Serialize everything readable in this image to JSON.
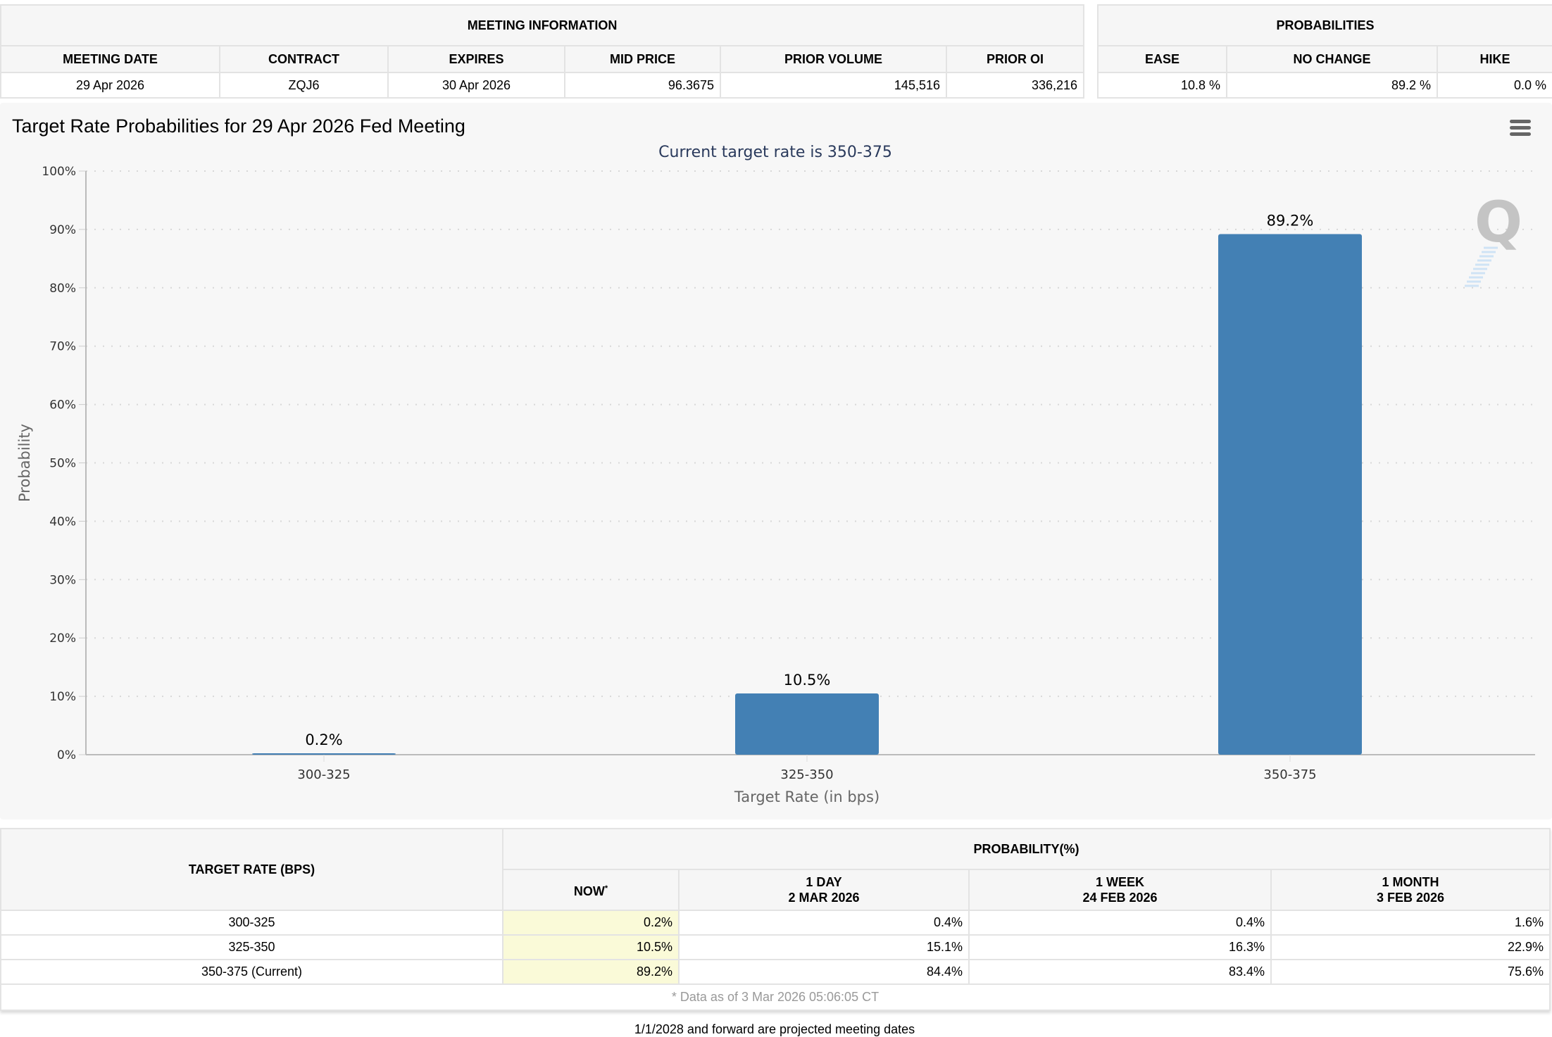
{
  "meeting_info": {
    "title": "MEETING INFORMATION",
    "headers": [
      "MEETING DATE",
      "CONTRACT",
      "EXPIRES",
      "MID PRICE",
      "PRIOR VOLUME",
      "PRIOR OI"
    ],
    "row": [
      "29 Apr 2026",
      "ZQJ6",
      "30 Apr 2026",
      "96.3675",
      "145,516",
      "336,216"
    ]
  },
  "probabilities": {
    "title": "PROBABILITIES",
    "headers": [
      "EASE",
      "NO CHANGE",
      "HIKE"
    ],
    "row": [
      "10.8 %",
      "89.2 %",
      "0.0 %"
    ]
  },
  "chart": {
    "menu_icon": "hamburger-menu-icon",
    "watermark_icon": "q-logo-icon"
  },
  "chart_data": {
    "type": "bar",
    "title": "Target Rate Probabilities for 29 Apr 2026 Fed Meeting",
    "subtitle": "Current target rate is 350-375",
    "xlabel": "Target Rate (in bps)",
    "ylabel": "Probability",
    "categories": [
      "300-325",
      "325-350",
      "350-375"
    ],
    "values": [
      0.2,
      10.5,
      89.2
    ],
    "data_labels": [
      "0.2%",
      "10.5%",
      "89.2%"
    ],
    "ylim": [
      0,
      100
    ],
    "yticks": [
      0,
      10,
      20,
      30,
      40,
      50,
      60,
      70,
      80,
      90,
      100
    ],
    "ytick_labels": [
      "0%",
      "10%",
      "20%",
      "30%",
      "40%",
      "50%",
      "60%",
      "70%",
      "80%",
      "90%",
      "100%"
    ],
    "grid": true,
    "bar_color": "#4380b4"
  },
  "prob_table": {
    "target_header": "TARGET RATE (BPS)",
    "group_header": "PROBABILITY(%)",
    "columns": [
      {
        "line1": "NOW",
        "line2": "",
        "sup": "*"
      },
      {
        "line1": "1 DAY",
        "line2": "2 MAR 2026",
        "sup": ""
      },
      {
        "line1": "1 WEEK",
        "line2": "24 FEB 2026",
        "sup": ""
      },
      {
        "line1": "1 MONTH",
        "line2": "3 FEB 2026",
        "sup": ""
      }
    ],
    "rows": [
      {
        "rate": "300-325",
        "values": [
          "0.2%",
          "0.4%",
          "0.4%",
          "1.6%"
        ]
      },
      {
        "rate": "325-350",
        "values": [
          "10.5%",
          "15.1%",
          "16.3%",
          "22.9%"
        ]
      },
      {
        "rate": "350-375 (Current)",
        "values": [
          "89.2%",
          "84.4%",
          "83.4%",
          "75.6%"
        ]
      }
    ],
    "data_note": "* Data as of 3 Mar 2026 05:06:05 CT"
  },
  "footnote": "1/1/2028 and forward are projected meeting dates"
}
